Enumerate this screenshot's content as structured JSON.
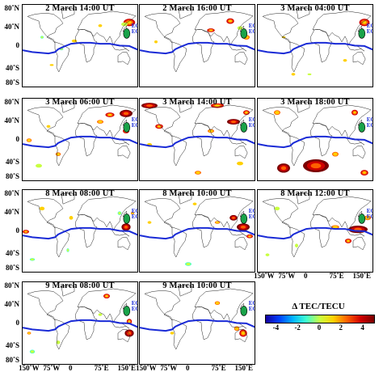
{
  "panels": [
    {
      "title": "2 March 14:00 UT"
    },
    {
      "title": "2 March 16:00 UT"
    },
    {
      "title": "3 March 04:00 UT"
    },
    {
      "title": "3 March 06:00 UT"
    },
    {
      "title": "3 March 14:00 UT"
    },
    {
      "title": "3 March 18:00 UT"
    },
    {
      "title": "8 March 08:00 UT"
    },
    {
      "title": "8 March 10:00 UT"
    },
    {
      "title": "8 March 12:00 UT"
    },
    {
      "title": "9 March 08:00 UT"
    },
    {
      "title": "9 March 10:00 UT"
    }
  ],
  "markers": {
    "eq1": "EQ1",
    "eq2": "EQ2"
  },
  "y_ticks": [
    "80˚N",
    "40˚N",
    "0",
    "40˚S",
    "80˚S"
  ],
  "x_ticks": [
    "150˚W",
    "75˚W",
    "0",
    "75˚E",
    "150˚E"
  ],
  "legend": {
    "title": "Δ TEC/TECU",
    "ticks": [
      "-4",
      "-2",
      "0",
      "2",
      "4"
    ],
    "range": [
      -5,
      5
    ]
  },
  "colors": {
    "equator": "#1a2bd6",
    "marker": "#1aa34a",
    "eq_label": "#1a2bd6"
  }
}
